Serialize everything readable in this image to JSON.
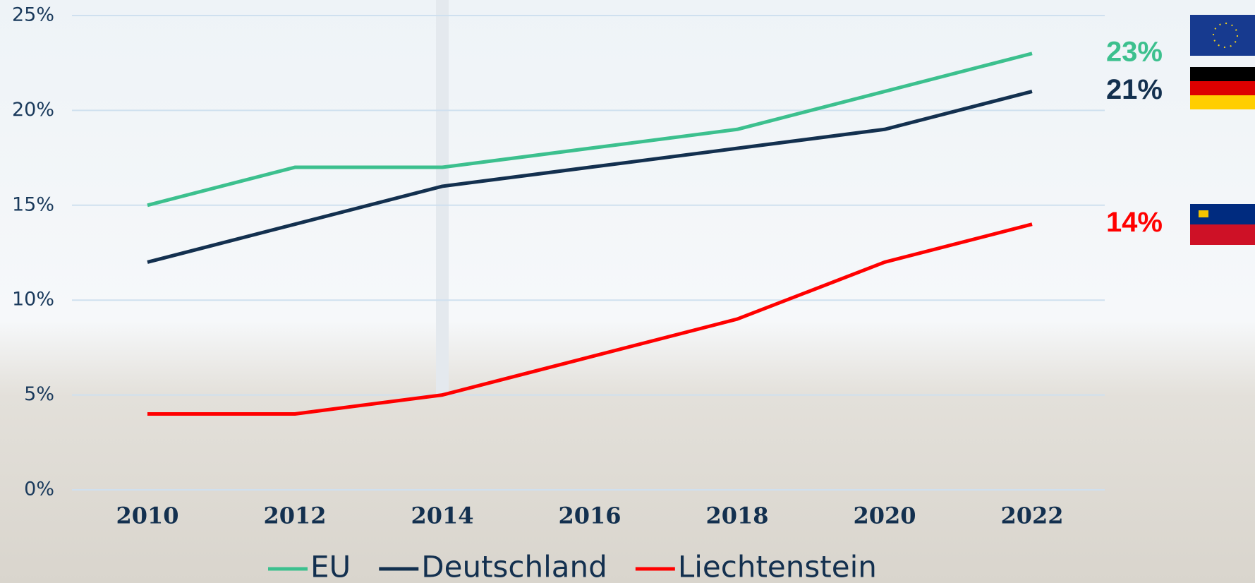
{
  "chart_data": {
    "type": "line",
    "categories": [
      "2010",
      "2012",
      "2014",
      "2016",
      "2018",
      "2020",
      "2022"
    ],
    "series": [
      {
        "name": "EU",
        "color": "#3cc08e",
        "values": [
          15,
          17,
          17,
          18,
          19,
          21,
          23
        ],
        "end_label": "23%"
      },
      {
        "name": "Deutschland",
        "color": "#13304f",
        "values": [
          12,
          14,
          16,
          17,
          18,
          19,
          21
        ],
        "end_label": "21%"
      },
      {
        "name": "Liechtenstein",
        "color": "#ff0000",
        "values": [
          4,
          4,
          5,
          7,
          9,
          12,
          14
        ],
        "end_label": "14%"
      }
    ],
    "ylim": [
      0,
      25
    ],
    "yticks": [
      {
        "value": 0,
        "label": "0%"
      },
      {
        "value": 5,
        "label": "5%"
      },
      {
        "value": 10,
        "label": "10%"
      },
      {
        "value": 15,
        "label": "15%"
      },
      {
        "value": 20,
        "label": "20%"
      },
      {
        "value": 25,
        "label": "25%"
      }
    ],
    "grid": true,
    "legend": "bottom"
  }
}
